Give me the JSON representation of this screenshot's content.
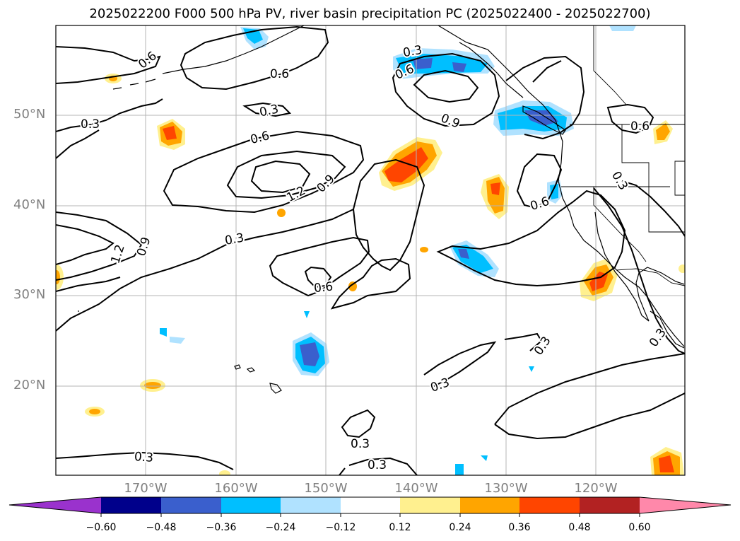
{
  "title": "2025022200 F000 500 hPa PV, river basin precipitation PC (2025022400 - 2025022700)",
  "map": {
    "lat_labels": [
      "50°N",
      "40°N",
      "30°N",
      "20°N"
    ],
    "lon_labels": [
      "170°W",
      "160°W",
      "150°W",
      "140°W",
      "130°W",
      "120°W"
    ],
    "contour_labels": [
      "0.6",
      "0.6",
      "0.3",
      "0.3",
      "0.6",
      "0.3",
      "0.6",
      "0.9",
      "0.6",
      "0.6",
      "1.2",
      "0.9",
      "0.3",
      "1.2",
      "0.9",
      "0.6",
      "0.3",
      "0.3",
      "0.3",
      "0.3",
      "0.3",
      "0.3",
      "0.3"
    ]
  },
  "colorbar": {
    "ticks": [
      "−0.60",
      "−0.48",
      "−0.36",
      "−0.24",
      "−0.12",
      "0.12",
      "0.24",
      "0.36",
      "0.48",
      "0.60"
    ],
    "colors": {
      "neg_extend": "#9a32cd",
      "neg_060": "#00008b",
      "neg_048": "#3a5fcd",
      "neg_036": "#00bfff",
      "neg_024": "#b0e2ff",
      "mid": "#ffffff",
      "pos_012": "#fff08f",
      "pos_024": "#ffa500",
      "pos_036": "#ff4500",
      "pos_048": "#b22222",
      "pos_extend": "#ff88aa"
    }
  }
}
